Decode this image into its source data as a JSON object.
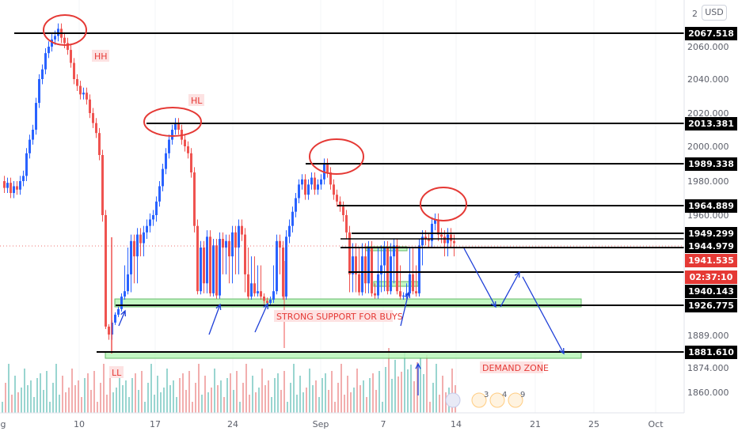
{
  "header": {
    "currency": "USD"
  },
  "colors": {
    "up": "#2962ff",
    "down": "#ef5350",
    "level": "#000000",
    "zone": "#b9f6b9",
    "zone_border": "#4caf50",
    "circle": "#e53935",
    "arrow": "#1e3fd8",
    "current": "#e53935",
    "countdown": "#e53935"
  },
  "chart_data": {
    "type": "candlestick",
    "symbol_currency": "USD",
    "x_ticks": [
      "g",
      "10",
      "17",
      "24",
      "Sep",
      "7",
      "14",
      "21",
      "25",
      "Oct"
    ],
    "y_ticks": [
      "2060.000",
      "2040.000",
      "2020.000",
      "2000.000",
      "1980.000",
      "1960.000",
      "1889.000",
      "1874.000",
      "1860.000"
    ],
    "levels": [
      {
        "name": "level-2067",
        "value": "2067.518"
      },
      {
        "name": "level-2013",
        "value": "2013.381"
      },
      {
        "name": "level-1989",
        "value": "1989.338"
      },
      {
        "name": "level-1964",
        "value": "1964.889"
      },
      {
        "name": "level-1949",
        "value": "1949.299"
      },
      {
        "name": "level-1944",
        "value": "1944.979"
      },
      {
        "name": "level-1940",
        "value": "1940.143"
      },
      {
        "name": "level-1926",
        "value": "1926.775"
      },
      {
        "name": "level-1881",
        "value": "1881.610"
      }
    ],
    "current_price": "1941.535",
    "countdown": "02:37:10",
    "annotations": {
      "hh": "HH",
      "hl": "HL",
      "ll": "LL",
      "support": "STRONG SUPPORT FOR BUYS",
      "demand": "DEMAND ZONE"
    },
    "event_badges": [
      "3",
      "4",
      "9"
    ],
    "series": [
      {
        "name": "price",
        "points": [
          [
            0,
            1980
          ],
          [
            4,
            1976
          ],
          [
            8,
            1979
          ],
          [
            12,
            1973
          ],
          [
            16,
            1977
          ],
          [
            20,
            1975
          ],
          [
            24,
            1980
          ],
          [
            28,
            1983
          ],
          [
            32,
            1996
          ],
          [
            36,
            2004
          ],
          [
            40,
            2010
          ],
          [
            44,
            2026
          ],
          [
            48,
            2040
          ],
          [
            52,
            2046
          ],
          [
            56,
            2056
          ],
          [
            60,
            2060
          ],
          [
            64,
            2064
          ],
          [
            68,
            2066
          ],
          [
            72,
            2070
          ],
          [
            76,
            2065
          ],
          [
            80,
            2062
          ],
          [
            84,
            2058
          ],
          [
            88,
            2050
          ],
          [
            92,
            2040
          ],
          [
            96,
            2036
          ],
          [
            100,
            2031
          ],
          [
            104,
            2032
          ],
          [
            108,
            2028
          ],
          [
            112,
            2020
          ],
          [
            116,
            2014
          ],
          [
            120,
            2008
          ],
          [
            124,
            1995
          ],
          [
            128,
            1960
          ],
          [
            132,
            1900
          ],
          [
            136,
            1890
          ],
          [
            140,
            1905
          ],
          [
            144,
            1915
          ],
          [
            148,
            1922
          ],
          [
            152,
            1935
          ],
          [
            156,
            1940
          ],
          [
            160,
            1942
          ],
          [
            164,
            1948
          ],
          [
            168,
            1944
          ],
          [
            172,
            1951
          ],
          [
            176,
            1947
          ],
          [
            180,
            1952
          ],
          [
            184,
            1955
          ],
          [
            188,
            1958
          ],
          [
            192,
            1960
          ],
          [
            196,
            1968
          ],
          [
            200,
            1977
          ],
          [
            204,
            1987
          ],
          [
            208,
            1996
          ],
          [
            212,
            2004
          ],
          [
            216,
            2010
          ],
          [
            220,
            2014
          ],
          [
            224,
            2010
          ],
          [
            228,
            2004
          ],
          [
            232,
            2000
          ],
          [
            236,
            1996
          ],
          [
            240,
            1985
          ],
          [
            244,
            1955
          ],
          [
            248,
            1940
          ],
          [
            252,
            1945
          ],
          [
            256,
            1941
          ],
          [
            260,
            1950
          ],
          [
            264,
            1938
          ],
          [
            268,
            1946
          ],
          [
            272,
            1936
          ],
          [
            276,
            1949
          ],
          [
            280,
            1945
          ],
          [
            284,
            1948
          ],
          [
            288,
            1944
          ],
          [
            292,
            1952
          ],
          [
            296,
            1945
          ],
          [
            300,
            1955
          ],
          [
            304,
            1951
          ],
          [
            308,
            1942
          ],
          [
            312,
            1935
          ],
          [
            316,
            1941
          ],
          [
            320,
            1938
          ],
          [
            324,
            1940
          ],
          [
            328,
            1935
          ],
          [
            332,
            1931
          ],
          [
            336,
            1929
          ],
          [
            340,
            1932
          ],
          [
            344,
            1940
          ],
          [
            348,
            1948
          ],
          [
            352,
            1945
          ],
          [
            356,
            1935
          ],
          [
            360,
            1950
          ],
          [
            364,
            1955
          ],
          [
            368,
            1962
          ],
          [
            372,
            1970
          ],
          [
            376,
            1978
          ],
          [
            380,
            1981
          ],
          [
            384,
            1972
          ],
          [
            388,
            1978
          ],
          [
            392,
            1982
          ],
          [
            396,
            1975
          ],
          [
            400,
            1978
          ],
          [
            404,
            1981
          ],
          [
            408,
            1990
          ],
          [
            412,
            1985
          ],
          [
            416,
            1978
          ],
          [
            420,
            1972
          ],
          [
            424,
            1968
          ],
          [
            428,
            1965
          ],
          [
            432,
            1960
          ],
          [
            436,
            1952
          ],
          [
            440,
            1942
          ],
          [
            444,
            1944
          ],
          [
            448,
            1942
          ],
          [
            452,
            1939
          ],
          [
            456,
            1944
          ],
          [
            460,
            1941
          ],
          [
            464,
            1945
          ],
          [
            468,
            1938
          ],
          [
            472,
            1936
          ],
          [
            476,
            1942
          ],
          [
            480,
            1943
          ],
          [
            484,
            1945
          ],
          [
            488,
            1940
          ],
          [
            492,
            1944
          ],
          [
            496,
            1946
          ],
          [
            500,
            1940
          ],
          [
            504,
            1935
          ],
          [
            508,
            1936
          ],
          [
            512,
            1938
          ],
          [
            516,
            1942
          ],
          [
            520,
            1940
          ],
          [
            524,
            1938
          ],
          [
            528,
            1946
          ],
          [
            532,
            1950
          ],
          [
            536,
            1949
          ],
          [
            540,
            1948
          ],
          [
            544,
            1956
          ],
          [
            548,
            1958
          ],
          [
            552,
            1951
          ],
          [
            556,
            1950
          ],
          [
            560,
            1947
          ],
          [
            564,
            1951
          ],
          [
            568,
            1948
          ],
          [
            572,
            1947
          ]
        ]
      }
    ]
  }
}
